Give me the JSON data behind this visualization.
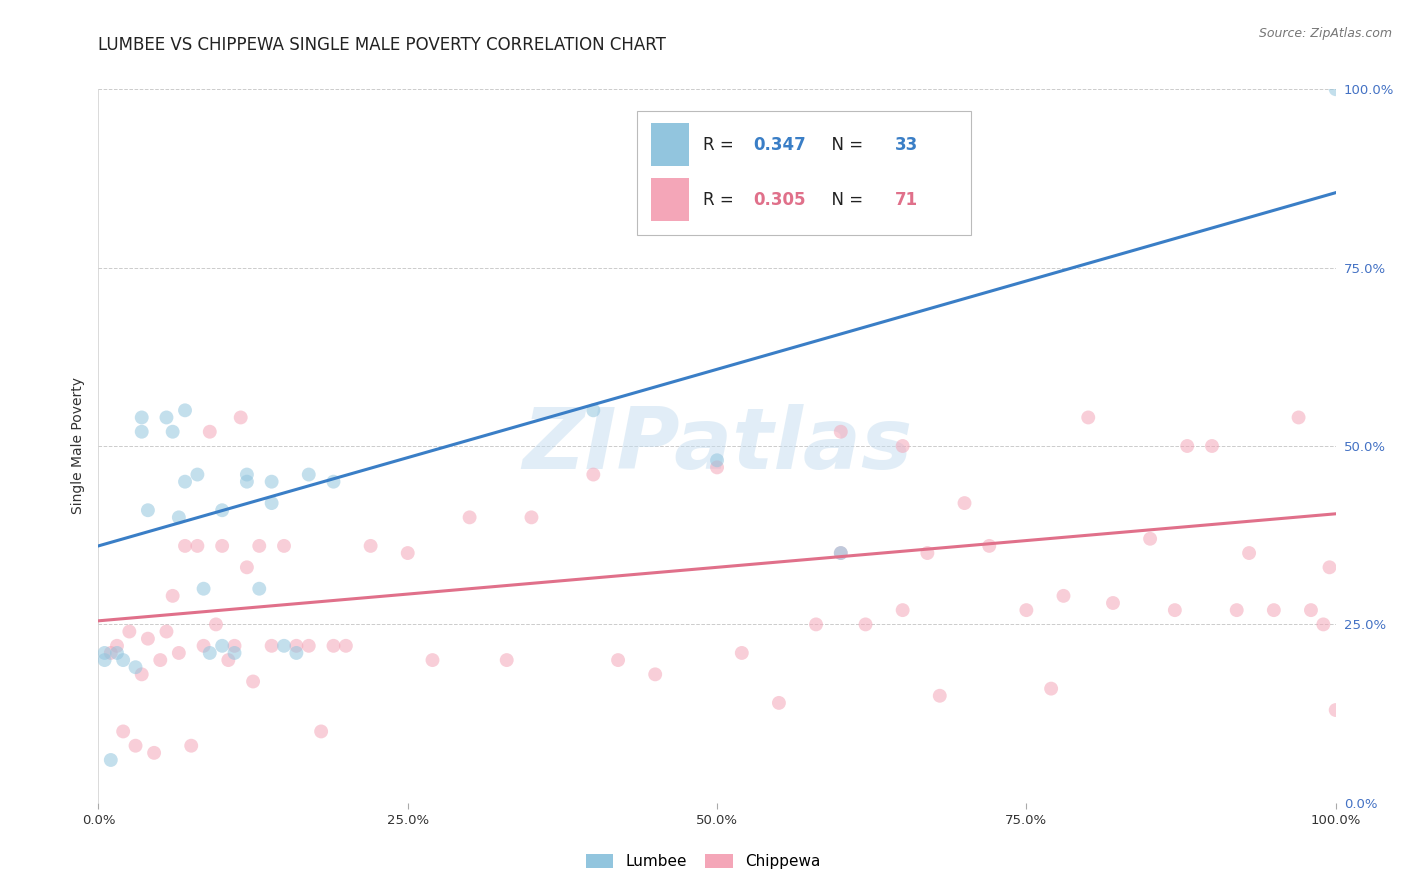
{
  "title": "LUMBEE VS CHIPPEWA SINGLE MALE POVERTY CORRELATION CHART",
  "source": "Source: ZipAtlas.com",
  "ylabel": "Single Male Poverty",
  "watermark": "ZIPatlas",
  "lumbee_R": 0.347,
  "lumbee_N": 33,
  "chippewa_R": 0.305,
  "chippewa_N": 71,
  "lumbee_color": "#92c5de",
  "chippewa_color": "#f4a6b8",
  "lumbee_line_color": "#3a7ec6",
  "chippewa_line_color": "#e0708a",
  "lumbee_x": [
    0.005,
    0.015,
    0.035,
    0.035,
    0.04,
    0.055,
    0.06,
    0.065,
    0.07,
    0.08,
    0.085,
    0.09,
    0.1,
    0.1,
    0.11,
    0.12,
    0.13,
    0.14,
    0.15,
    0.16,
    0.17,
    0.19,
    0.005,
    0.01,
    0.02,
    0.03,
    0.07,
    0.12,
    0.14,
    0.4,
    0.5,
    0.6,
    1.0
  ],
  "lumbee_y": [
    0.21,
    0.21,
    0.54,
    0.52,
    0.41,
    0.54,
    0.52,
    0.4,
    0.45,
    0.46,
    0.3,
    0.21,
    0.41,
    0.22,
    0.21,
    0.45,
    0.3,
    0.42,
    0.22,
    0.21,
    0.46,
    0.45,
    0.2,
    0.06,
    0.2,
    0.19,
    0.55,
    0.46,
    0.45,
    0.55,
    0.48,
    0.35,
    1.0
  ],
  "chippewa_x": [
    0.01,
    0.015,
    0.02,
    0.025,
    0.03,
    0.035,
    0.04,
    0.045,
    0.05,
    0.055,
    0.06,
    0.065,
    0.07,
    0.075,
    0.08,
    0.085,
    0.09,
    0.095,
    0.1,
    0.105,
    0.11,
    0.115,
    0.12,
    0.125,
    0.13,
    0.14,
    0.15,
    0.16,
    0.17,
    0.18,
    0.19,
    0.2,
    0.22,
    0.25,
    0.27,
    0.3,
    0.33,
    0.35,
    0.4,
    0.42,
    0.45,
    0.5,
    0.52,
    0.55,
    0.58,
    0.6,
    0.62,
    0.65,
    0.67,
    0.68,
    0.7,
    0.72,
    0.75,
    0.77,
    0.78,
    0.8,
    0.82,
    0.85,
    0.87,
    0.88,
    0.9,
    0.92,
    0.93,
    0.95,
    0.97,
    0.98,
    0.99,
    0.995,
    1.0,
    0.6,
    0.65
  ],
  "chippewa_y": [
    0.21,
    0.22,
    0.1,
    0.24,
    0.08,
    0.18,
    0.23,
    0.07,
    0.2,
    0.24,
    0.29,
    0.21,
    0.36,
    0.08,
    0.36,
    0.22,
    0.52,
    0.25,
    0.36,
    0.2,
    0.22,
    0.54,
    0.33,
    0.17,
    0.36,
    0.22,
    0.36,
    0.22,
    0.22,
    0.1,
    0.22,
    0.22,
    0.36,
    0.35,
    0.2,
    0.4,
    0.2,
    0.4,
    0.46,
    0.2,
    0.18,
    0.47,
    0.21,
    0.14,
    0.25,
    0.52,
    0.25,
    0.27,
    0.35,
    0.15,
    0.42,
    0.36,
    0.27,
    0.16,
    0.29,
    0.54,
    0.28,
    0.37,
    0.27,
    0.5,
    0.5,
    0.27,
    0.35,
    0.27,
    0.54,
    0.27,
    0.25,
    0.33,
    0.13,
    0.35,
    0.5
  ],
  "xlim": [
    0.0,
    1.0
  ],
  "ylim": [
    0.0,
    1.0
  ],
  "xticks": [
    0.0,
    0.25,
    0.5,
    0.75,
    1.0
  ],
  "yticks": [
    0.0,
    0.25,
    0.5,
    0.75,
    1.0
  ],
  "xticklabels": [
    "0.0%",
    "25.0%",
    "50.0%",
    "75.0%",
    "100.0%"
  ],
  "right_yticklabels": [
    "0.0%",
    "25.0%",
    "50.0%",
    "75.0%",
    "100.0%"
  ],
  "lumbee_line_y0": 0.36,
  "lumbee_line_y1": 0.855,
  "chippewa_line_y0": 0.255,
  "chippewa_line_y1": 0.405,
  "marker_size": 100,
  "marker_alpha": 0.55,
  "grid_color": "#cccccc",
  "bg_color": "#ffffff",
  "title_fontsize": 12,
  "axis_label_fontsize": 10,
  "tick_fontsize": 9.5,
  "source_fontsize": 9,
  "right_tick_color": "#4472c4"
}
